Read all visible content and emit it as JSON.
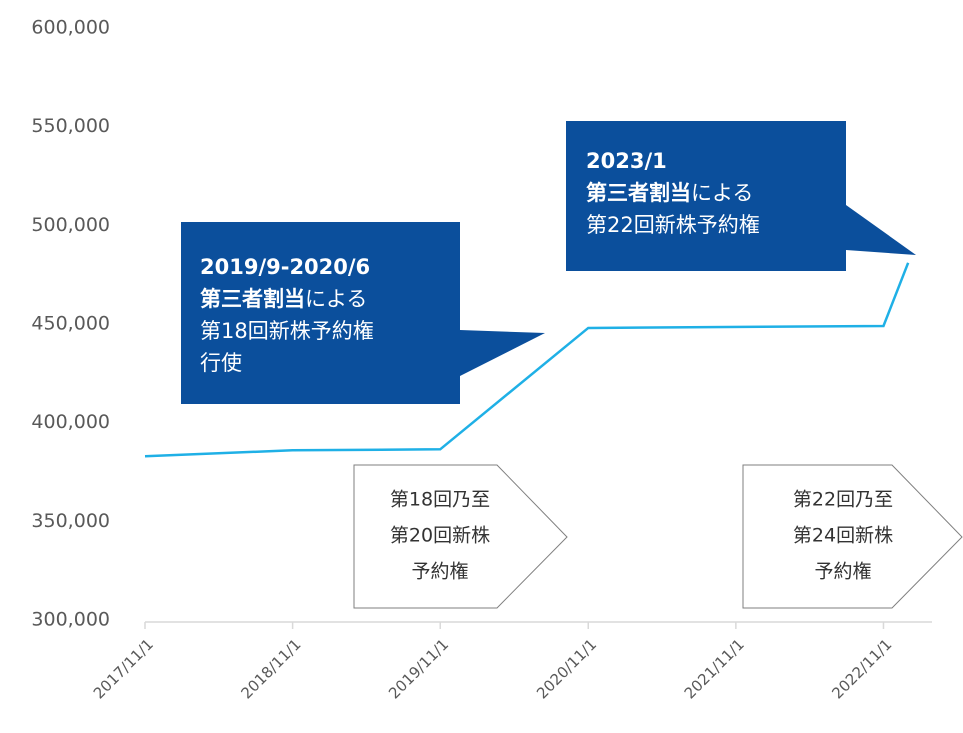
{
  "chart_data": {
    "type": "line",
    "x": [
      "2017/11/1",
      "2018/11/1",
      "2019/11/1",
      "2020/11/1",
      "2022/11/1",
      "2023/1/1"
    ],
    "series": [
      {
        "color": "#1fb0e6",
        "values": [
          383000,
          386000,
          386500,
          448000,
          449000,
          481000
        ]
      }
    ],
    "xlim": [
      "2017/11/1",
      "2023/3/1"
    ],
    "xticks": [
      "2017/11/1",
      "2018/11/1",
      "2019/11/1",
      "2020/11/1",
      "2021/11/1",
      "2022/11/1"
    ],
    "ylim": [
      300000,
      600000
    ],
    "yticks": [
      {
        "value": 300000,
        "label": "300,000"
      },
      {
        "value": 350000,
        "label": "350,000"
      },
      {
        "value": 400000,
        "label": "400,000"
      },
      {
        "value": 450000,
        "label": "450,000"
      },
      {
        "value": 500000,
        "label": "500,000"
      },
      {
        "value": 550000,
        "label": "550,000"
      },
      {
        "value": 600000,
        "label": "600,000"
      }
    ],
    "grid": false,
    "callouts": [
      {
        "color": "#0b4f9c",
        "lines": [
          [
            {
              "text": "2019/9-2020/6",
              "bold": true
            }
          ],
          [
            {
              "text": "第三者割当",
              "bold": true
            },
            {
              "text": "による",
              "bold": false
            }
          ],
          [
            {
              "text": "第18回新株予約権",
              "bold": false
            }
          ],
          [
            {
              "text": "行使",
              "bold": false
            }
          ]
        ]
      },
      {
        "color": "#0b4f9c",
        "lines": [
          [
            {
              "text": "2023/1",
              "bold": true
            }
          ],
          [
            {
              "text": "第三者割当",
              "bold": true
            },
            {
              "text": "による",
              "bold": false
            }
          ],
          [
            {
              "text": "第22回新株予約権",
              "bold": false
            }
          ]
        ]
      }
    ],
    "arrows": [
      {
        "lines": [
          "第18回乃至",
          "第20回新株",
          "予約権"
        ]
      },
      {
        "lines": [
          "第22回乃至",
          "第24回新株",
          "予約権"
        ]
      }
    ]
  }
}
